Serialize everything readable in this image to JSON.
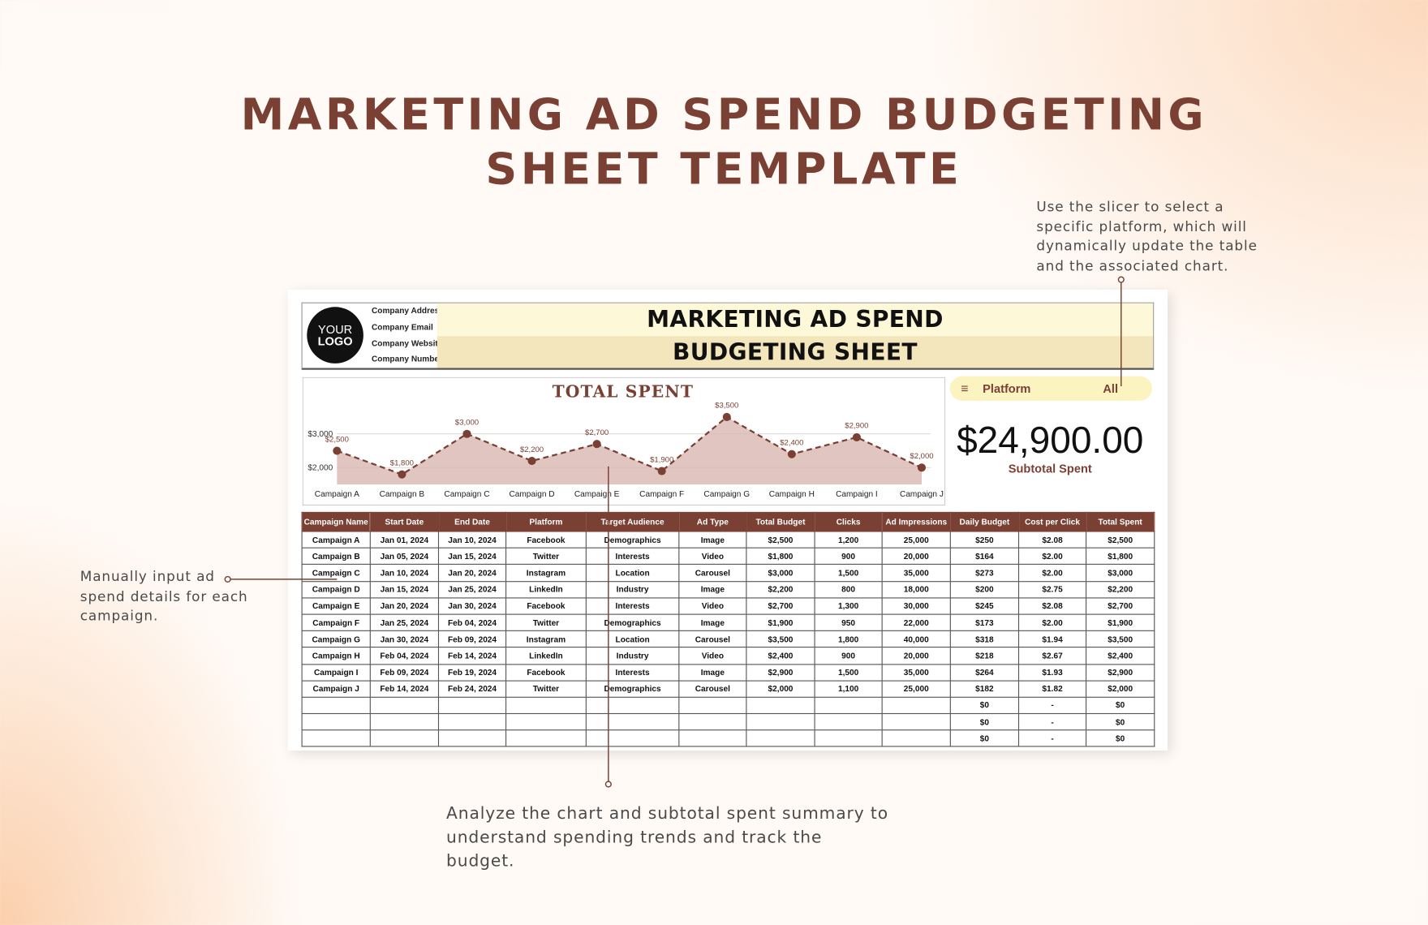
{
  "title": [
    "MARKETING AD SPEND BUDGETING",
    "SHEET TEMPLATE"
  ],
  "annotations": {
    "slicer": "Use the slicer to select a specific platform, which will dynamically update the table and the associated chart.",
    "input": "Manually input ad spend details for each campaign.",
    "analyze": "Analyze the chart and subtotal spent summary to understand spending trends and track the budget."
  },
  "sheet": {
    "logo": [
      "YOUR",
      "LOGO"
    ],
    "company": [
      "Company Address",
      "Company Email",
      "Company Website",
      "Company Number"
    ],
    "heading": [
      "MARKETING AD SPEND",
      "BUDGETING SHEET"
    ],
    "slicer": {
      "label": "Platform",
      "value": "All"
    },
    "subtotal": {
      "value": "$24,900.00",
      "label": "Subtotal Spent"
    }
  },
  "chart_data": {
    "type": "line",
    "title": "TOTAL SPENT",
    "categories": [
      "Campaign A",
      "Campaign B",
      "Campaign C",
      "Campaign D",
      "Campaign E",
      "Campaign F",
      "Campaign G",
      "Campaign H",
      "Campaign I",
      "Campaign J"
    ],
    "values": [
      2500,
      1800,
      3000,
      2200,
      2700,
      1900,
      3500,
      2400,
      2900,
      2000
    ],
    "value_labels": [
      "$2,500",
      "$1,800",
      "$3,000",
      "$2,200",
      "$2,700",
      "$1,900",
      "$3,500",
      "$2,400",
      "$2,900",
      "$2,000"
    ],
    "color": "#7a4034",
    "area_color": "#d8b7b0",
    "ylim": [
      1500,
      3550
    ],
    "yticks": [
      {
        "value": 2000,
        "label": "$2,000"
      },
      {
        "value": 3000,
        "label": "$3,000"
      }
    ],
    "grid": true
  },
  "table": {
    "headers": [
      "Campaign Name",
      "Start Date",
      "End Date",
      "Platform",
      "Target Audience",
      "Ad Type",
      "Total Budget",
      "Clicks",
      "Ad Impressions",
      "Daily Budget",
      "Cost per Click",
      "Total Spent"
    ],
    "rows": [
      [
        "Campaign A",
        "Jan 01, 2024",
        "Jan 10, 2024",
        "Facebook",
        "Demographics",
        "Image",
        "$2,500",
        "1,200",
        "25,000",
        "$250",
        "$2.08",
        "$2,500"
      ],
      [
        "Campaign B",
        "Jan 05, 2024",
        "Jan 15, 2024",
        "Twitter",
        "Interests",
        "Video",
        "$1,800",
        "900",
        "20,000",
        "$164",
        "$2.00",
        "$1,800"
      ],
      [
        "Campaign C",
        "Jan 10, 2024",
        "Jan 20, 2024",
        "Instagram",
        "Location",
        "Carousel",
        "$3,000",
        "1,500",
        "35,000",
        "$273",
        "$2.00",
        "$3,000"
      ],
      [
        "Campaign D",
        "Jan 15, 2024",
        "Jan 25, 2024",
        "LinkedIn",
        "Industry",
        "Image",
        "$2,200",
        "800",
        "18,000",
        "$200",
        "$2.75",
        "$2,200"
      ],
      [
        "Campaign E",
        "Jan 20, 2024",
        "Jan 30, 2024",
        "Facebook",
        "Interests",
        "Video",
        "$2,700",
        "1,300",
        "30,000",
        "$245",
        "$2.08",
        "$2,700"
      ],
      [
        "Campaign F",
        "Jan 25, 2024",
        "Feb 04, 2024",
        "Twitter",
        "Demographics",
        "Image",
        "$1,900",
        "950",
        "22,000",
        "$173",
        "$2.00",
        "$1,900"
      ],
      [
        "Campaign G",
        "Jan 30, 2024",
        "Feb 09, 2024",
        "Instagram",
        "Location",
        "Carousel",
        "$3,500",
        "1,800",
        "40,000",
        "$318",
        "$1.94",
        "$3,500"
      ],
      [
        "Campaign H",
        "Feb 04, 2024",
        "Feb 14, 2024",
        "LinkedIn",
        "Industry",
        "Video",
        "$2,400",
        "900",
        "20,000",
        "$218",
        "$2.67",
        "$2,400"
      ],
      [
        "Campaign I",
        "Feb 09, 2024",
        "Feb 19, 2024",
        "Facebook",
        "Interests",
        "Image",
        "$2,900",
        "1,500",
        "35,000",
        "$264",
        "$1.93",
        "$2,900"
      ],
      [
        "Campaign J",
        "Feb 14, 2024",
        "Feb 24, 2024",
        "Twitter",
        "Demographics",
        "Carousel",
        "$2,000",
        "1,100",
        "25,000",
        "$182",
        "$1.82",
        "$2,000"
      ],
      [
        null,
        null,
        null,
        null,
        null,
        null,
        null,
        null,
        null,
        "$0",
        "-",
        "$0"
      ],
      [
        null,
        null,
        null,
        null,
        null,
        null,
        null,
        null,
        null,
        "$0",
        "-",
        "$0"
      ],
      [
        null,
        null,
        null,
        null,
        null,
        null,
        null,
        null,
        null,
        "$0",
        "-",
        "$0"
      ]
    ]
  }
}
